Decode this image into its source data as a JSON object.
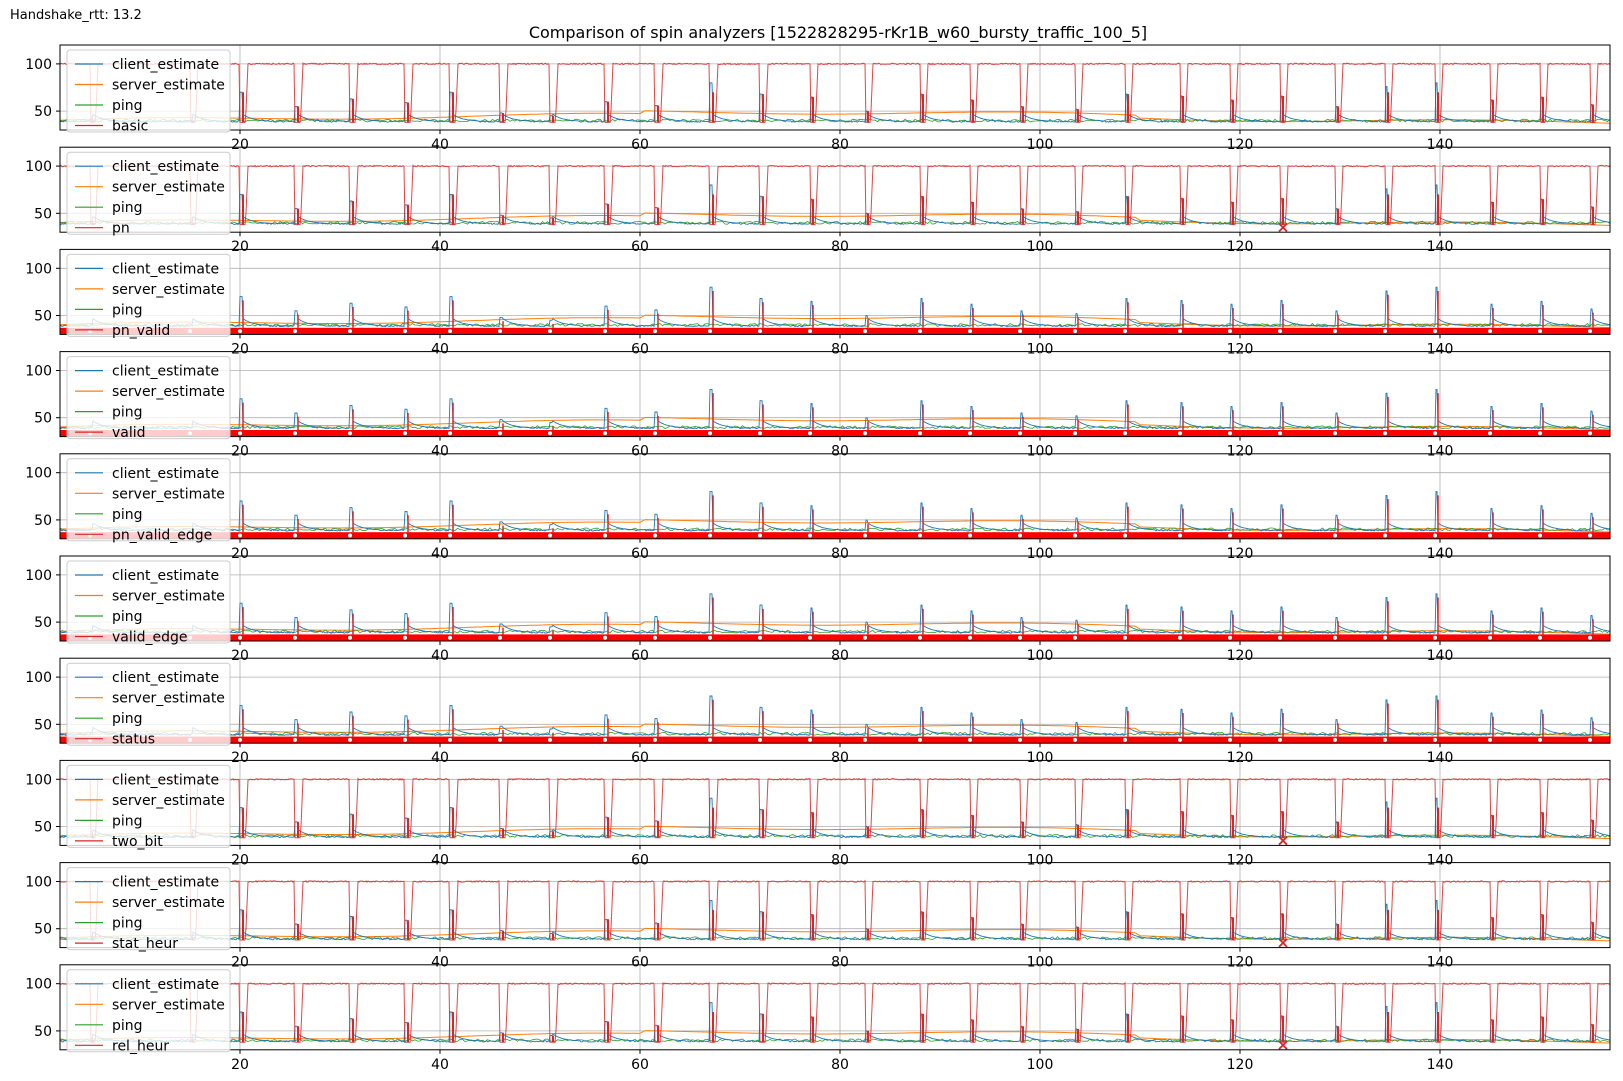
{
  "header": {
    "handshake_label": "Handshake_rtt: 13.2"
  },
  "chart_data": {
    "type": "line",
    "title": "Comparison of spin analyzers [1522828295-rKr1B_w60_bursty_traffic_100_5]",
    "xlabel": "",
    "ylabel": "",
    "xlim": [
      2,
      157
    ],
    "ylim": [
      30,
      120
    ],
    "x_ticks": [
      20,
      40,
      60,
      80,
      100,
      120,
      140
    ],
    "y_ticks": [
      50,
      100
    ],
    "grid": true,
    "legend_position": "left",
    "colors": {
      "client_estimate": "#1f77b4",
      "server_estimate": "#ff7f0e",
      "ping": "#2ca02c",
      "analyzer": "#d62728"
    },
    "spike_times": [
      5,
      15,
      20,
      25.5,
      31,
      36.5,
      41,
      46,
      51,
      56.5,
      61.5,
      67,
      72,
      77,
      82.5,
      88,
      93,
      98,
      103.5,
      108.5,
      114,
      119,
      124,
      129.5,
      134.5,
      139.5,
      145,
      150,
      155
    ],
    "client_spike_peaks": [
      40,
      40,
      70,
      55,
      63,
      59,
      70,
      48,
      45,
      60,
      56,
      80,
      68,
      65,
      50,
      68,
      62,
      55,
      52,
      68,
      66,
      62,
      66,
      55,
      76,
      80,
      62,
      65,
      57
    ],
    "panels": [
      {
        "legend": [
          "client_estimate",
          "server_estimate",
          "ping",
          "basic"
        ],
        "analyzer_mode": "square",
        "markers": []
      },
      {
        "legend": [
          "client_estimate",
          "server_estimate",
          "ping",
          "pn"
        ],
        "analyzer_mode": "square",
        "markers": [
          {
            "x": 124.3,
            "y": 35
          }
        ]
      },
      {
        "legend": [
          "client_estimate",
          "server_estimate",
          "ping",
          "pn_valid"
        ],
        "analyzer_mode": "band",
        "markers": []
      },
      {
        "legend": [
          "client_estimate",
          "server_estimate",
          "ping",
          "valid"
        ],
        "analyzer_mode": "band",
        "markers": []
      },
      {
        "legend": [
          "client_estimate",
          "server_estimate",
          "ping",
          "pn_valid_edge"
        ],
        "analyzer_mode": "band",
        "markers": []
      },
      {
        "legend": [
          "client_estimate",
          "server_estimate",
          "ping",
          "valid_edge"
        ],
        "analyzer_mode": "band",
        "markers": []
      },
      {
        "legend": [
          "client_estimate",
          "server_estimate",
          "ping",
          "status"
        ],
        "analyzer_mode": "band",
        "markers": []
      },
      {
        "legend": [
          "client_estimate",
          "server_estimate",
          "ping",
          "two_bit"
        ],
        "analyzer_mode": "square",
        "markers": [
          {
            "x": 124.3,
            "y": 35
          }
        ]
      },
      {
        "legend": [
          "client_estimate",
          "server_estimate",
          "ping",
          "stat_heur"
        ],
        "analyzer_mode": "square",
        "markers": [
          {
            "x": 124.3,
            "y": 35
          }
        ]
      },
      {
        "legend": [
          "client_estimate",
          "server_estimate",
          "ping",
          "rel_heur"
        ],
        "analyzer_mode": "square",
        "markers": [
          {
            "x": 124.3,
            "y": 35
          }
        ]
      }
    ]
  }
}
